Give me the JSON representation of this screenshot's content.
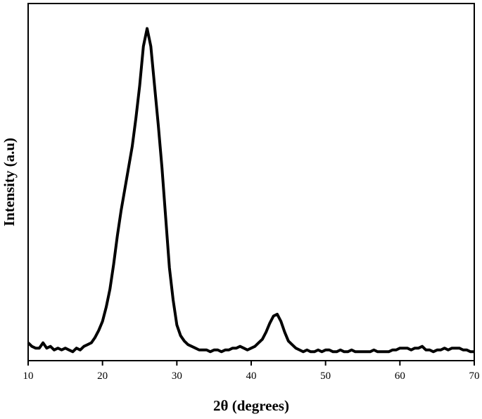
{
  "chart_data": {
    "type": "line",
    "x_label": "2θ (degrees)",
    "y_label": "Intensity (a.u)",
    "x": [
      10,
      10.5,
      11,
      11.5,
      12,
      12.5,
      13,
      13.5,
      14,
      14.5,
      15,
      15.5,
      16,
      16.5,
      17,
      17.5,
      18,
      18.5,
      19,
      19.5,
      20,
      20.5,
      21,
      21.5,
      22,
      22.5,
      23,
      23.5,
      24,
      24.5,
      25,
      25.5,
      26,
      26.5,
      27,
      27.5,
      28,
      28.5,
      29,
      29.5,
      30,
      30.5,
      31,
      31.5,
      32,
      32.5,
      33,
      33.5,
      34,
      34.5,
      35,
      35.5,
      36,
      36.5,
      37,
      37.5,
      38,
      38.5,
      39,
      39.5,
      40,
      40.5,
      41,
      41.5,
      42,
      42.5,
      43,
      43.5,
      44,
      44.5,
      45,
      45.5,
      46,
      46.5,
      47,
      47.5,
      48,
      48.5,
      49,
      49.5,
      50,
      50.5,
      51,
      51.5,
      52,
      52.5,
      53,
      53.5,
      54,
      54.5,
      55,
      55.5,
      56,
      56.5,
      57,
      57.5,
      58,
      58.5,
      59,
      59.5,
      60,
      60.5,
      61,
      61.5,
      62,
      62.5,
      63,
      63.5,
      64,
      64.5,
      65,
      65.5,
      66,
      66.5,
      67,
      67.5,
      68,
      68.5,
      69,
      69.5,
      70
    ],
    "series": [
      {
        "color": "#000000",
        "values": [
          5,
          4,
          3.5,
          3.5,
          5,
          3.5,
          4,
          3,
          3.5,
          3,
          3.5,
          3,
          2.5,
          3.5,
          3,
          4,
          4.5,
          5,
          6.5,
          8.5,
          11,
          15,
          20,
          27,
          35,
          42,
          48,
          54,
          60,
          68,
          77,
          88,
          93,
          88,
          77,
          66,
          54,
          40,
          26,
          17,
          10,
          7,
          5.5,
          4.5,
          4,
          3.5,
          3,
          3,
          3,
          2.5,
          3,
          3,
          2.5,
          3,
          3,
          3.5,
          3.5,
          4,
          3.5,
          3,
          3.5,
          4,
          5,
          6,
          8,
          10.5,
          12.5,
          13,
          11,
          8,
          5.5,
          4.5,
          3.5,
          3,
          2.5,
          3,
          2.5,
          2.5,
          3,
          2.5,
          3,
          3,
          2.5,
          2.5,
          3,
          2.5,
          2.5,
          3,
          2.5,
          2.5,
          2.5,
          2.5,
          2.5,
          3,
          2.5,
          2.5,
          2.5,
          2.5,
          3,
          3,
          3.5,
          3.5,
          3.5,
          3,
          3.5,
          3.5,
          4,
          3,
          3,
          2.5,
          3,
          3,
          3.5,
          3,
          3.5,
          3.5,
          3.5,
          3,
          3,
          2.5,
          2.5
        ]
      }
    ],
    "xlim": [
      10,
      70
    ],
    "xticks": [
      10,
      20,
      30,
      40,
      50,
      60,
      70
    ],
    "ylim": [
      0,
      100
    ]
  }
}
